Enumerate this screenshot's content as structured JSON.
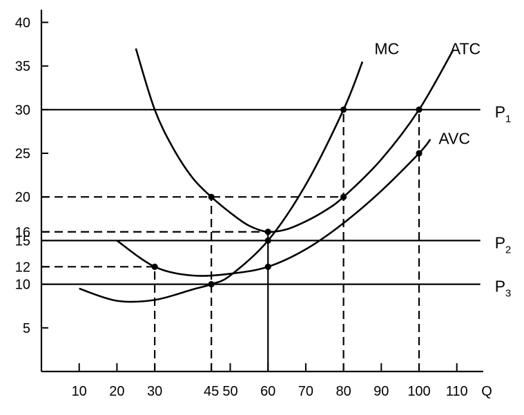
{
  "chart_data": {
    "type": "line",
    "title": "",
    "xlabel": "Q",
    "ylabel": "",
    "xlim": [
      0,
      118
    ],
    "ylim": [
      0,
      42
    ],
    "x_ticks": [
      10,
      20,
      30,
      45,
      50,
      60,
      70,
      80,
      90,
      100,
      110
    ],
    "y_ticks": [
      5,
      10,
      12,
      15,
      16,
      20,
      25,
      30,
      35,
      40
    ],
    "grid": false,
    "series": [
      {
        "name": "MC",
        "x": [
          10,
          20,
          30,
          40,
          45,
          50,
          60,
          70,
          80,
          85
        ],
        "y": [
          9.5,
          8.1,
          8.2,
          9.4,
          10.0,
          11.0,
          15.0,
          21.4,
          30.0,
          35.5
        ]
      },
      {
        "name": "ATC",
        "x": [
          25,
          30,
          35,
          40,
          45,
          50,
          55,
          60,
          65,
          70,
          75,
          80,
          90,
          100,
          109
        ],
        "y": [
          37.0,
          30.0,
          25.5,
          22.2,
          20.0,
          18.2,
          16.7,
          16.0,
          16.3,
          17.2,
          18.4,
          20.0,
          24.3,
          30.0,
          36.8
        ]
      },
      {
        "name": "AVC",
        "x": [
          20,
          30,
          40,
          50,
          60,
          70,
          80,
          90,
          100,
          103
        ],
        "y": [
          15.0,
          12.0,
          11.0,
          11.2,
          12.0,
          14.0,
          17.0,
          20.7,
          25.0,
          26.6
        ]
      }
    ],
    "price_lines": [
      {
        "label": "P",
        "subscript": "1",
        "y": 30,
        "x_from": 0,
        "x_to": 110
      },
      {
        "label": "P",
        "subscript": "2",
        "y": 15,
        "x_from": 0,
        "x_to": 110
      },
      {
        "label": "P",
        "subscript": "3",
        "y": 10,
        "x_from": 0,
        "x_to": 110
      }
    ],
    "curve_labels": [
      {
        "text": "MC",
        "x": 86,
        "y": 37
      },
      {
        "text": "ATC",
        "x": 106,
        "y": 37
      },
      {
        "text": "AVC",
        "x": 103,
        "y": 26.7
      }
    ],
    "points": [
      {
        "x": 80,
        "y": 30
      },
      {
        "x": 100,
        "y": 30
      },
      {
        "x": 100,
        "y": 25
      },
      {
        "x": 45,
        "y": 20
      },
      {
        "x": 80,
        "y": 20
      },
      {
        "x": 60,
        "y": 16
      },
      {
        "x": 60,
        "y": 15
      },
      {
        "x": 30,
        "y": 12
      },
      {
        "x": 60,
        "y": 12
      },
      {
        "x": 45,
        "y": 10
      }
    ],
    "dashed_horizontal": [
      {
        "y": 20,
        "x_from": 0,
        "x_to": 80
      },
      {
        "y": 16,
        "x_from": 0,
        "x_to": 60
      },
      {
        "y": 12,
        "x_from": 0,
        "x_to": 30
      }
    ],
    "dashed_vertical": [
      {
        "x": 30,
        "y_from": 0,
        "y_to": 12
      },
      {
        "x": 45,
        "y_from": 0,
        "y_to": 20
      },
      {
        "x": 80,
        "y_from": 0,
        "y_to": 30
      },
      {
        "x": 100,
        "y_from": 0,
        "y_to": 30
      }
    ],
    "solid_vertical": [
      {
        "x": 60,
        "y_from": 0,
        "y_to": 16
      }
    ]
  }
}
